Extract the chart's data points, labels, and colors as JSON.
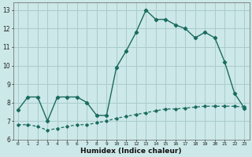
{
  "xlabel": "Humidex (Indice chaleur)",
  "bg_color": "#cce8e8",
  "grid_color": "#aacccc",
  "line_color": "#1a6b5e",
  "xlim": [
    -0.5,
    23.5
  ],
  "ylim": [
    6.0,
    13.4
  ],
  "xticks": [
    0,
    1,
    2,
    3,
    4,
    5,
    6,
    7,
    8,
    9,
    10,
    11,
    12,
    13,
    14,
    15,
    16,
    17,
    18,
    19,
    20,
    21,
    22,
    23
  ],
  "yticks": [
    6,
    7,
    8,
    9,
    10,
    11,
    12,
    13
  ],
  "line1_x": [
    0,
    1,
    2,
    3,
    4,
    5,
    6,
    7,
    8,
    9,
    10,
    11,
    12,
    13,
    14,
    15,
    16,
    17,
    18,
    19,
    20,
    21,
    22,
    23
  ],
  "line1_y": [
    7.6,
    8.3,
    8.3,
    7.0,
    8.3,
    8.3,
    8.3,
    8.0,
    7.3,
    7.3,
    9.9,
    10.8,
    11.8,
    13.0,
    12.5,
    12.5,
    12.2,
    12.0,
    11.5,
    11.8,
    11.5,
    10.2,
    8.5,
    7.7
  ],
  "line2_x": [
    0,
    1,
    2,
    3,
    4,
    5,
    6,
    7,
    8,
    9,
    10,
    11,
    12,
    13,
    14,
    15,
    16,
    17,
    18,
    19,
    20,
    21,
    22,
    23
  ],
  "line2_y": [
    6.8,
    6.8,
    6.7,
    6.5,
    6.6,
    6.7,
    6.8,
    6.8,
    6.9,
    7.0,
    7.15,
    7.25,
    7.35,
    7.45,
    7.55,
    7.65,
    7.65,
    7.7,
    7.75,
    7.8,
    7.8,
    7.8,
    7.8,
    7.75
  ]
}
